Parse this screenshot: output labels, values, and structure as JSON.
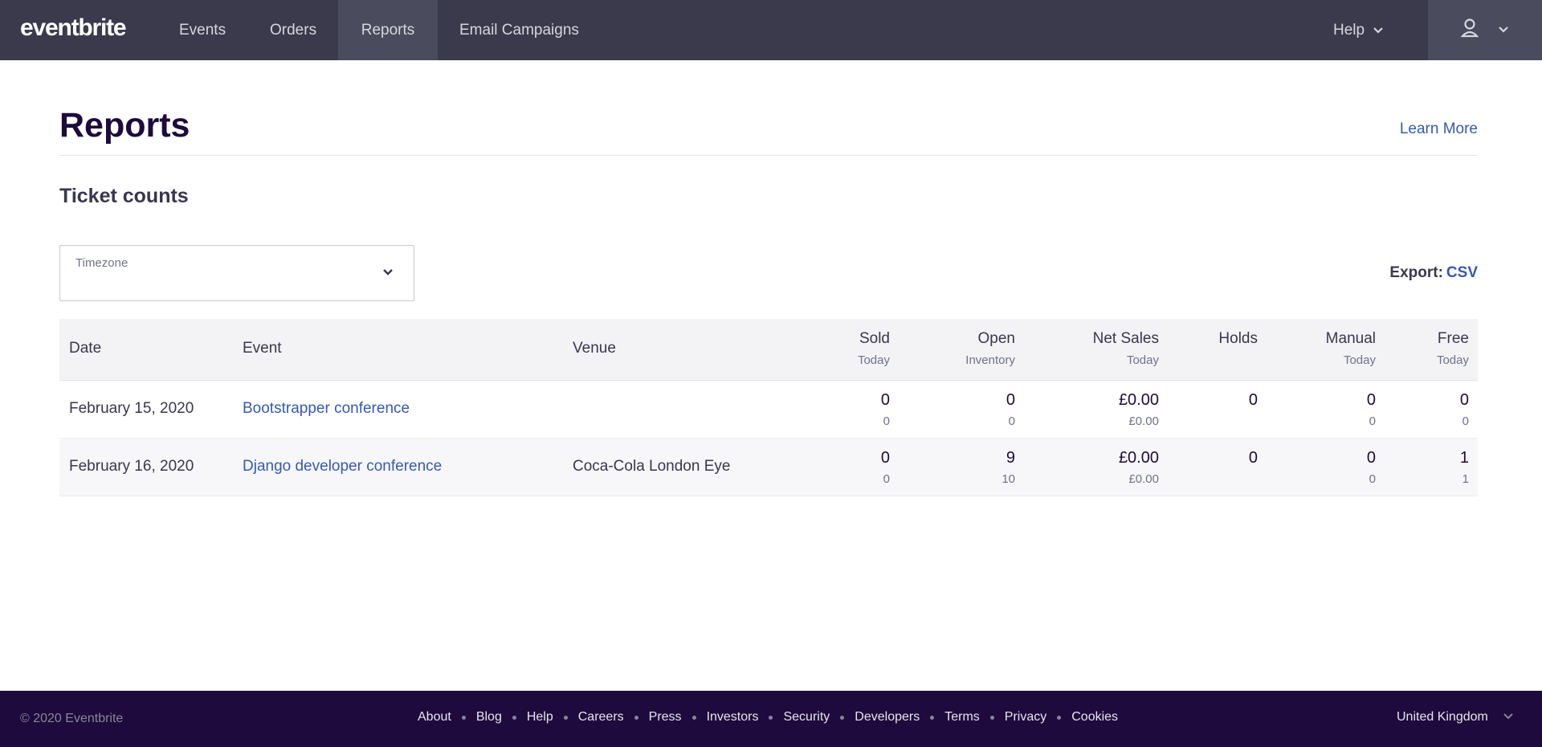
{
  "nav": {
    "logo": "eventbrite",
    "items": [
      {
        "label": "Events"
      },
      {
        "label": "Orders"
      },
      {
        "label": "Reports"
      },
      {
        "label": "Email Campaigns"
      }
    ],
    "help_label": "Help",
    "user_icon": "user-icon"
  },
  "page": {
    "title": "Reports",
    "learn_more": "Learn More",
    "section_title": "Ticket counts"
  },
  "timezone": {
    "label": "Timezone",
    "value": ""
  },
  "export": {
    "label": "Export:",
    "csv": "CSV"
  },
  "table": {
    "headers": {
      "date": "Date",
      "event": "Event",
      "venue": "Venue",
      "sold": {
        "main": "Sold",
        "sub": "Today"
      },
      "open": {
        "main": "Open",
        "sub": "Inventory"
      },
      "net_sales": {
        "main": "Net Sales",
        "sub": "Today"
      },
      "holds": {
        "main": "Holds",
        "sub": ""
      },
      "manual": {
        "main": "Manual",
        "sub": "Today"
      },
      "free": {
        "main": "Free",
        "sub": "Today"
      }
    },
    "rows": [
      {
        "date": "February 15, 2020",
        "event": "Bootstrapper conference",
        "venue": "",
        "sold": {
          "main": "0",
          "sub": "0"
        },
        "open": {
          "main": "0",
          "sub": "0"
        },
        "net_sales": {
          "main": "£0.00",
          "sub": "£0.00"
        },
        "holds": {
          "main": "0",
          "sub": ""
        },
        "manual": {
          "main": "0",
          "sub": "0"
        },
        "free": {
          "main": "0",
          "sub": "0"
        }
      },
      {
        "date": "February 16, 2020",
        "event": "Django developer conference",
        "venue": "Coca-Cola London Eye",
        "sold": {
          "main": "0",
          "sub": "0"
        },
        "open": {
          "main": "9",
          "sub": "10"
        },
        "net_sales": {
          "main": "£0.00",
          "sub": "£0.00"
        },
        "holds": {
          "main": "0",
          "sub": ""
        },
        "manual": {
          "main": "0",
          "sub": "0"
        },
        "free": {
          "main": "1",
          "sub": "1"
        }
      }
    ]
  },
  "footer": {
    "copyright": "© 2020 Eventbrite",
    "links": [
      "About",
      "Blog",
      "Help",
      "Careers",
      "Press",
      "Investors",
      "Security",
      "Developers",
      "Terms",
      "Privacy",
      "Cookies"
    ],
    "country": "United Kingdom"
  }
}
